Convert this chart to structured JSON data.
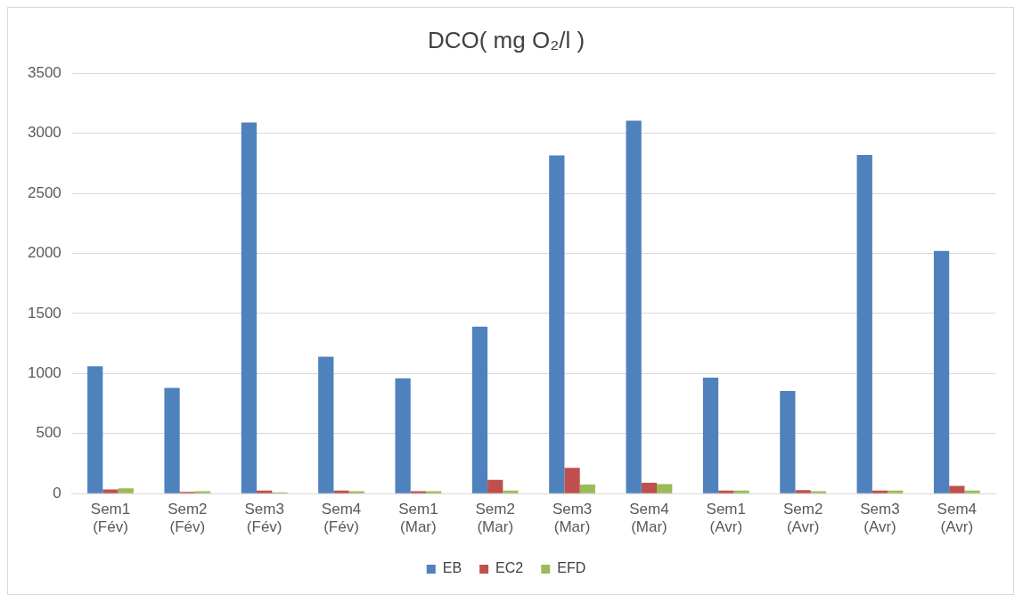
{
  "chart_data": {
    "type": "bar",
    "title": "DCO( mg O₂/l )",
    "categories": [
      "Sem1 (Fév)",
      "Sem2 (Fév)",
      "Sem3 (Fév)",
      "Sem4 (Fév)",
      "Sem1 (Mar)",
      "Sem2 (Mar)",
      "Sem3 (Mar)",
      "Sem4 (Mar)",
      "Sem1 (Avr)",
      "Sem2 (Avr)",
      "Sem3 (Avr)",
      "Sem4 (Avr)"
    ],
    "series": [
      {
        "name": "EB",
        "color": "#4f81bd",
        "values": [
          1060,
          880,
          3090,
          1140,
          960,
          1390,
          2815,
          3105,
          965,
          855,
          2820,
          2020
        ]
      },
      {
        "name": "EC2",
        "color": "#c0504d",
        "values": [
          35,
          15,
          25,
          25,
          20,
          115,
          215,
          90,
          25,
          30,
          25,
          65
        ]
      },
      {
        "name": "EFD",
        "color": "#9bbb59",
        "values": [
          45,
          20,
          10,
          20,
          20,
          25,
          75,
          80,
          25,
          20,
          25,
          25
        ]
      }
    ],
    "ylim": [
      0,
      3500
    ],
    "yticks": [
      0,
      500,
      1000,
      1500,
      2000,
      2500,
      3000,
      3500
    ],
    "grid": "y",
    "legend": "bottom"
  }
}
